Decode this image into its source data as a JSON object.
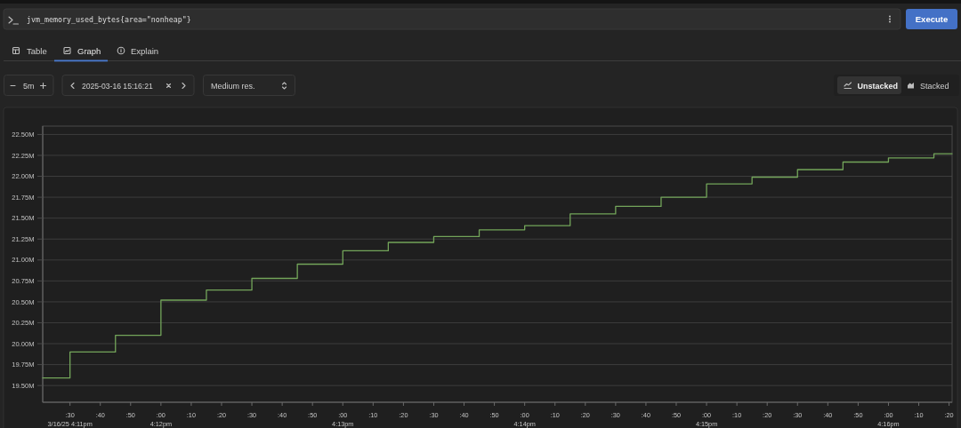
{
  "chart_data": {
    "type": "step",
    "title": "jvm_memory_used_bytes{area=\"nonheap\"}",
    "x": [
      "2025-03-16T16:11:21",
      "2025-03-16T16:11:30",
      "2025-03-16T16:11:45",
      "2025-03-16T16:12:00",
      "2025-03-16T16:12:15",
      "2025-03-16T16:12:30",
      "2025-03-16T16:12:45",
      "2025-03-16T16:13:00",
      "2025-03-16T16:13:15",
      "2025-03-16T16:13:30",
      "2025-03-16T16:13:45",
      "2025-03-16T16:14:00",
      "2025-03-16T16:14:15",
      "2025-03-16T16:14:30",
      "2025-03-16T16:14:45",
      "2025-03-16T16:15:00",
      "2025-03-16T16:15:15",
      "2025-03-16T16:15:30",
      "2025-03-16T16:15:45",
      "2025-03-16T16:16:00",
      "2025-03-16T16:16:15",
      "2025-03-16T16:16:21"
    ],
    "series": [
      {
        "color": "#73a55a",
        "values": [
          19.59,
          19.9,
          20.1,
          20.52,
          20.64,
          20.78,
          20.95,
          21.11,
          21.21,
          21.28,
          21.36,
          21.41,
          21.55,
          21.64,
          21.75,
          21.91,
          21.99,
          22.08,
          22.17,
          22.22,
          22.27,
          22.27
        ]
      }
    ],
    "xlim": [
      "2025-03-16T16:11:21",
      "2025-03-16T16:16:21"
    ],
    "xticks": [
      {
        "value": "2025-03-16T16:11:30",
        "label": ":30\n3/16/25 4:11pm"
      },
      {
        "value": "2025-03-16T16:11:40",
        "label": ":40"
      },
      {
        "value": "2025-03-16T16:11:50",
        "label": ":50"
      },
      {
        "value": "2025-03-16T16:12:00",
        "label": ":00\n4:12pm"
      },
      {
        "value": "2025-03-16T16:12:10",
        "label": ":10"
      },
      {
        "value": "2025-03-16T16:12:20",
        "label": ":20"
      },
      {
        "value": "2025-03-16T16:12:30",
        "label": ":30"
      },
      {
        "value": "2025-03-16T16:12:40",
        "label": ":40"
      },
      {
        "value": "2025-03-16T16:12:50",
        "label": ":50"
      },
      {
        "value": "2025-03-16T16:13:00",
        "label": ":00\n4:13pm"
      },
      {
        "value": "2025-03-16T16:13:10",
        "label": ":10"
      },
      {
        "value": "2025-03-16T16:13:20",
        "label": ":20"
      },
      {
        "value": "2025-03-16T16:13:30",
        "label": ":30"
      },
      {
        "value": "2025-03-16T16:13:40",
        "label": ":40"
      },
      {
        "value": "2025-03-16T16:13:50",
        "label": ":50"
      },
      {
        "value": "2025-03-16T16:14:00",
        "label": ":00\n4:14pm"
      },
      {
        "value": "2025-03-16T16:14:10",
        "label": ":10"
      },
      {
        "value": "2025-03-16T16:14:20",
        "label": ":20"
      },
      {
        "value": "2025-03-16T16:14:30",
        "label": ":30"
      },
      {
        "value": "2025-03-16T16:14:40",
        "label": ":40"
      },
      {
        "value": "2025-03-16T16:14:50",
        "label": ":50"
      },
      {
        "value": "2025-03-16T16:15:00",
        "label": ":00\n4:15pm"
      },
      {
        "value": "2025-03-16T16:15:10",
        "label": ":10"
      },
      {
        "value": "2025-03-16T16:15:20",
        "label": ":20"
      },
      {
        "value": "2025-03-16T16:15:30",
        "label": ":30"
      },
      {
        "value": "2025-03-16T16:15:40",
        "label": ":40"
      },
      {
        "value": "2025-03-16T16:15:50",
        "label": ":50"
      },
      {
        "value": "2025-03-16T16:16:00",
        "label": ":00\n4:16pm"
      },
      {
        "value": "2025-03-16T16:16:10",
        "label": ":10"
      },
      {
        "value": "2025-03-16T16:16:20",
        "label": ":20"
      }
    ],
    "ylim": [
      19.3,
      22.6
    ],
    "yticks": [
      {
        "value": 19.5,
        "label": "19.50M"
      },
      {
        "value": 19.75,
        "label": "19.75M"
      },
      {
        "value": 20,
        "label": "20.00M"
      },
      {
        "value": 20.25,
        "label": "20.25M"
      },
      {
        "value": 20.5,
        "label": "20.50M"
      },
      {
        "value": 20.75,
        "label": "20.75M"
      },
      {
        "value": 21,
        "label": "21.00M"
      },
      {
        "value": 21.25,
        "label": "21.25M"
      },
      {
        "value": 21.5,
        "label": "21.50M"
      },
      {
        "value": 21.75,
        "label": "21.75M"
      },
      {
        "value": 22,
        "label": "22.00M"
      },
      {
        "value": 22.25,
        "label": "22.25M"
      },
      {
        "value": 22.5,
        "label": "22.50M"
      }
    ],
    "grid": "y",
    "annotations": [
      "Table",
      "Graph",
      "Explain",
      "5m",
      "2025-03-16 15:16:21",
      "Medium res.",
      "Unstacked",
      "Stacked",
      "Execute"
    ]
  }
}
